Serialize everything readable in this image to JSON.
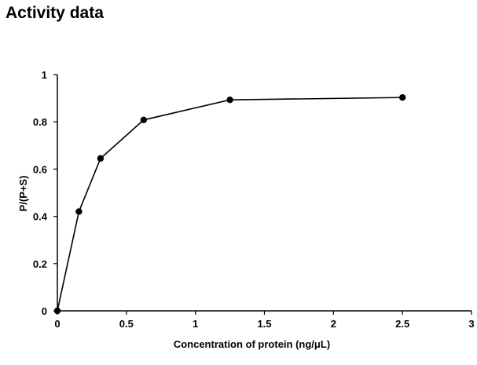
{
  "page": {
    "title": "Activity data"
  },
  "chart_data": {
    "type": "line",
    "title": "Activity data",
    "xlabel": "Concentration of protein (ng/μL)",
    "ylabel": "P/(P+S)",
    "xlim": [
      0,
      3
    ],
    "ylim": [
      0,
      1
    ],
    "x_ticks": [
      0,
      0.5,
      1,
      1.5,
      2,
      2.5,
      3
    ],
    "x_tick_labels": [
      "0",
      "0.5",
      "1",
      "1.5",
      "2",
      "2.5",
      "3"
    ],
    "y_ticks": [
      0,
      0.2,
      0.4,
      0.6,
      0.8,
      1
    ],
    "y_tick_labels": [
      "0",
      "0.2",
      "0.4",
      "0.6",
      "0.8",
      "1"
    ],
    "grid": false,
    "legend": "none",
    "series": [
      {
        "name": "P/(P+S)",
        "color": "#000000",
        "marker": "circle",
        "x": [
          0,
          0.156,
          0.3125,
          0.625,
          1.25,
          2.5
        ],
        "y": [
          0,
          0.42,
          0.645,
          0.808,
          0.893,
          0.903
        ]
      }
    ]
  }
}
